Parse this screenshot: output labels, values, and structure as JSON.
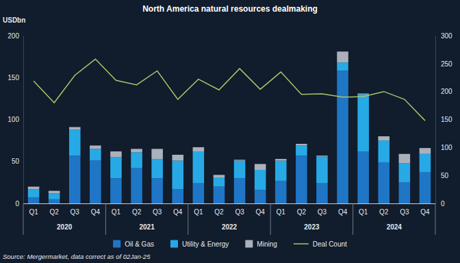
{
  "chart_data": {
    "type": "bar",
    "title": "North America natural resources dealmaking",
    "ylabel": "USDbn",
    "source": "Source: Mergermarket, data correct as of 02Jan-25",
    "stacked": true,
    "grid": false,
    "legend": "bottom",
    "categories": [
      "Q1",
      "Q2",
      "Q3",
      "Q4",
      "Q1",
      "Q2",
      "Q3",
      "Q4",
      "Q1",
      "Q2",
      "Q3",
      "Q4",
      "Q1",
      "Q2",
      "Q3",
      "Q4",
      "Q1",
      "Q2",
      "Q3",
      "Q4"
    ],
    "groups": [
      "2020",
      "2021",
      "2022",
      "2023",
      "2024"
    ],
    "ylim": [
      0,
      200
    ],
    "yticks": [
      0,
      50,
      100,
      150,
      200
    ],
    "y2lim": [
      0,
      300
    ],
    "y2ticks": [
      0,
      50,
      100,
      150,
      200,
      250,
      300
    ],
    "series": [
      {
        "name": "Oil & Gas",
        "type": "bar",
        "color": "#1f76c6",
        "values": [
          7,
          5,
          57,
          51,
          30,
          42,
          30,
          17,
          24,
          20,
          30,
          16,
          27,
          57,
          24,
          158,
          62,
          49,
          25,
          37
        ]
      },
      {
        "name": "Utility & Energy",
        "type": "bar",
        "color": "#27a9e6",
        "values": [
          10,
          7,
          31,
          14,
          25,
          19,
          23,
          34,
          38,
          11,
          21,
          24,
          24,
          12,
          32,
          10,
          68,
          26,
          23,
          22
        ]
      },
      {
        "name": "Mining",
        "type": "bar",
        "color": "#aab1bb",
        "values": [
          3,
          3,
          3,
          4,
          7,
          4,
          12,
          7,
          5,
          3,
          1,
          7,
          2,
          2,
          1,
          13,
          1,
          5,
          11,
          7
        ]
      },
      {
        "name": "Deal Count",
        "type": "line",
        "axis": "y2",
        "color": "#a3c76b",
        "values": [
          219,
          180,
          229,
          258,
          220,
          212,
          237,
          186,
          222,
          203,
          241,
          204,
          235,
          195,
          196,
          190,
          191,
          200,
          186,
          148
        ]
      }
    ]
  }
}
